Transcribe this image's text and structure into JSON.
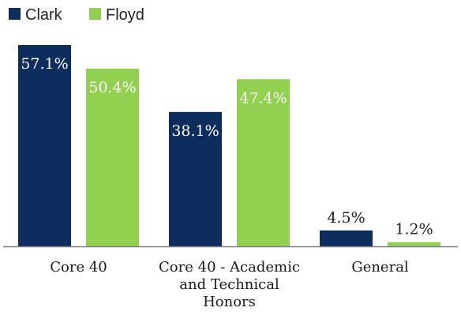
{
  "chart_data": {
    "type": "bar",
    "categories": [
      [
        "Core 40"
      ],
      [
        "Core 40 - Academic",
        "and Technical",
        "Honors"
      ],
      [
        "General"
      ]
    ],
    "series": [
      {
        "name": "Clark",
        "color": "#0d2d5e",
        "values": [
          57.1,
          38.1,
          4.5
        ],
        "labels": [
          "57.1%",
          "38.1%",
          "4.5%"
        ]
      },
      {
        "name": "Floyd",
        "color": "#92d050",
        "values": [
          50.4,
          47.4,
          1.2
        ],
        "labels": [
          "50.4%",
          "47.4%",
          "1.2%"
        ]
      }
    ],
    "ylim": [
      0,
      57.1
    ],
    "grid": false,
    "legend_position": "top-left",
    "value_label_color_inside": "#ffffff",
    "value_label_color_outside": "#222222",
    "axis_color": "#7f7f7f"
  }
}
